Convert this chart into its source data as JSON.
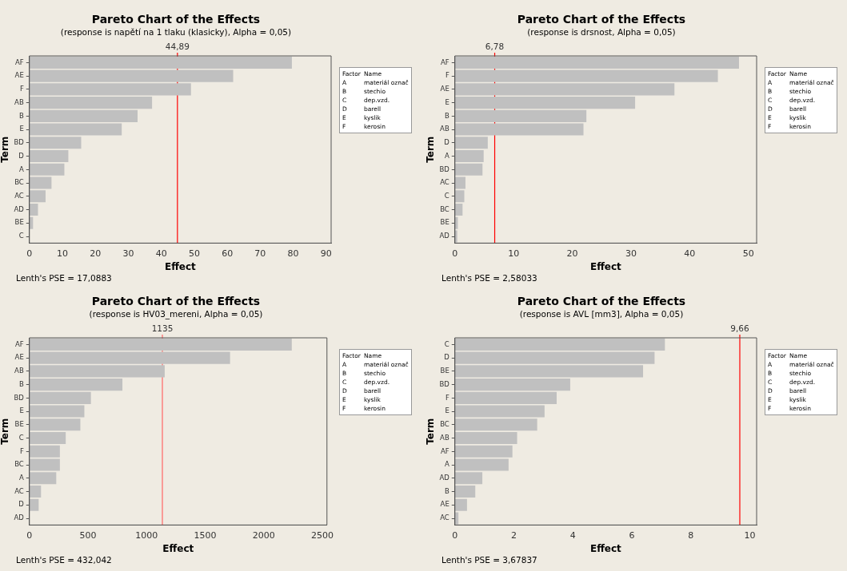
{
  "chart_data": [
    {
      "type": "bar",
      "orientation": "horizontal",
      "title": "Pareto Chart of the Effects",
      "subtitle": "(response is napětí na 1 tlaku (klasicky), Alpha = 0,05)",
      "xlabel": "Effect",
      "ylabel": "Term",
      "color": "#c0c0c0",
      "categories": [
        "AF",
        "AE",
        "F",
        "AB",
        "B",
        "E",
        "BD",
        "D",
        "A",
        "BC",
        "AC",
        "AD",
        "BE",
        "C"
      ],
      "values": [
        79.6,
        61.8,
        49.0,
        37.2,
        32.8,
        28.0,
        15.7,
        11.8,
        10.6,
        6.7,
        4.9,
        2.6,
        1.1,
        null
      ],
      "xlim": [
        0,
        91.5
      ],
      "xticks": [
        0,
        10,
        20,
        30,
        40,
        50,
        60,
        70,
        80,
        90
      ],
      "ref_lines": [
        {
          "axis": "x",
          "value": 44.89,
          "label": "44,89",
          "color": "#ff0000"
        }
      ],
      "annotations": [
        "Lenth's PSE = 17,0883",
        "Factor",
        "Name",
        "A",
        "materiál označ",
        "B",
        "stechio",
        "C",
        "dep.vzd.",
        "D",
        "barell",
        "E",
        "kyslik",
        "F",
        "kerosin"
      ]
    },
    {
      "type": "bar",
      "orientation": "horizontal",
      "title": "Pareto Chart of the Effects",
      "subtitle": "(response is drsnost, Alpha = 0,05)",
      "xlabel": "Effect",
      "ylabel": "Term",
      "color": "#c0c0c0",
      "categories": [
        "AF",
        "F",
        "AE",
        "E",
        "B",
        "AB",
        "D",
        "A",
        "BD",
        "AC",
        "C",
        "BC",
        "BE",
        "AD"
      ],
      "values": [
        48.4,
        44.8,
        37.4,
        30.7,
        22.4,
        21.9,
        5.6,
        4.9,
        4.7,
        1.8,
        1.6,
        1.3,
        0.5,
        0.4
      ],
      "xlim": [
        0,
        51.4
      ],
      "xticks": [
        0,
        10,
        20,
        30,
        40,
        50
      ],
      "ref_lines": [
        {
          "axis": "x",
          "value": 6.78,
          "label": "6,78",
          "color": "#ff0000"
        }
      ],
      "annotations": [
        "Lenth's PSE = 2,58033",
        "Factor",
        "Name",
        "A",
        "materiál označ",
        "B",
        "stechio",
        "C",
        "dep.vzd.",
        "D",
        "barell",
        "E",
        "kyslik",
        "F",
        "kerosin"
      ]
    },
    {
      "type": "bar",
      "orientation": "horizontal",
      "title": "Pareto Chart of the Effects",
      "subtitle": "(response is HV03_mereni, Alpha = 0,05)",
      "xlabel": "Effect",
      "ylabel": "Term",
      "color": "#c0c0c0",
      "categories": [
        "AF",
        "AE",
        "AB",
        "B",
        "BD",
        "E",
        "BE",
        "C",
        "F",
        "BC",
        "A",
        "AC",
        "D",
        "AD"
      ],
      "values": [
        2240,
        1713,
        1155,
        794,
        525,
        469,
        435,
        310,
        260,
        260,
        229,
        99,
        79,
        null
      ],
      "xlim": [
        0,
        2540
      ],
      "xticks": [
        0,
        500,
        1000,
        1500,
        2000,
        2500
      ],
      "ref_lines": [
        {
          "axis": "x",
          "value": 1135,
          "label": "1135",
          "color": "#ff6666"
        }
      ],
      "annotations": [
        "Lenth's PSE = 432,042",
        "Factor",
        "Name",
        "A",
        "materiál označ",
        "B",
        "stechio",
        "C",
        "dep.vzd.",
        "D",
        "barell",
        "E",
        "kyslik",
        "F",
        "kerosin"
      ]
    },
    {
      "type": "bar",
      "orientation": "horizontal",
      "title": "Pareto Chart of the Effects",
      "subtitle": "(response is AVL [mm3], Alpha = 0,05)",
      "xlabel": "Effect",
      "ylabel": "Term",
      "color": "#c0c0c0",
      "categories": [
        "C",
        "D",
        "BE",
        "BD",
        "F",
        "E",
        "BC",
        "AB",
        "AF",
        "A",
        "AD",
        "B",
        "AE",
        "AC"
      ],
      "values": [
        7.12,
        6.77,
        6.38,
        3.91,
        3.45,
        3.04,
        2.79,
        2.11,
        1.95,
        1.82,
        0.93,
        0.69,
        0.41,
        0.12
      ],
      "xlim": [
        0,
        10.23
      ],
      "xticks": [
        0,
        2,
        4,
        6,
        8,
        10
      ],
      "ref_lines": [
        {
          "axis": "x",
          "value": 9.66,
          "label": "9,66",
          "color": "#ff0000"
        }
      ],
      "annotations": [
        "Lenth's PSE = 3,67837",
        "Factor",
        "Name",
        "A",
        "materiál označ",
        "B",
        "stechio",
        "C",
        "dep.vzd.",
        "D",
        "barell",
        "E",
        "kyslik",
        "F",
        "kerosin"
      ]
    }
  ]
}
